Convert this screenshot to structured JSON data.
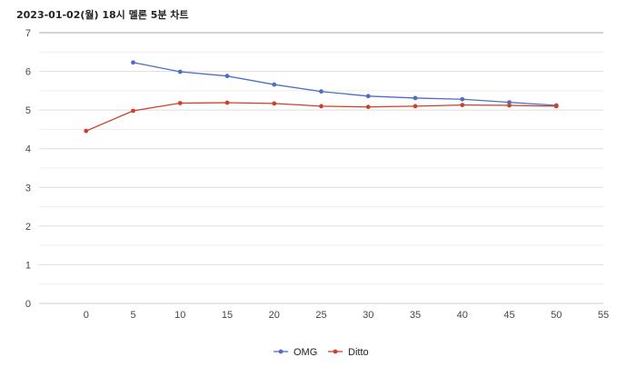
{
  "chart_data": {
    "type": "line",
    "title": "2023-01-02(월) 18시 멜론 5분 차트",
    "xlabel": "",
    "ylabel": "",
    "xlim": [
      -5,
      55
    ],
    "ylim": [
      0,
      7
    ],
    "x_ticks": [
      0,
      5,
      10,
      15,
      20,
      25,
      30,
      35,
      40,
      45,
      50,
      55
    ],
    "y_ticks": [
      0,
      1,
      2,
      3,
      4,
      5,
      6,
      7
    ],
    "grid": true,
    "legend_position": "bottom",
    "series": [
      {
        "name": "OMG",
        "color": "#4a6fc4",
        "points": [
          [
            5,
            6.23
          ],
          [
            10,
            5.99
          ],
          [
            15,
            5.88
          ],
          [
            20,
            5.66
          ],
          [
            25,
            5.48
          ],
          [
            30,
            5.36
          ],
          [
            35,
            5.31
          ],
          [
            40,
            5.28
          ],
          [
            45,
            5.2
          ],
          [
            50,
            5.12
          ]
        ]
      },
      {
        "name": "Ditto",
        "color": "#cc4128",
        "points": [
          [
            0,
            4.46
          ],
          [
            5,
            4.98
          ],
          [
            10,
            5.18
          ],
          [
            15,
            5.19
          ],
          [
            20,
            5.17
          ],
          [
            25,
            5.1
          ],
          [
            30,
            5.08
          ],
          [
            35,
            5.1
          ],
          [
            40,
            5.13
          ],
          [
            45,
            5.12
          ],
          [
            50,
            5.1
          ]
        ]
      }
    ]
  }
}
